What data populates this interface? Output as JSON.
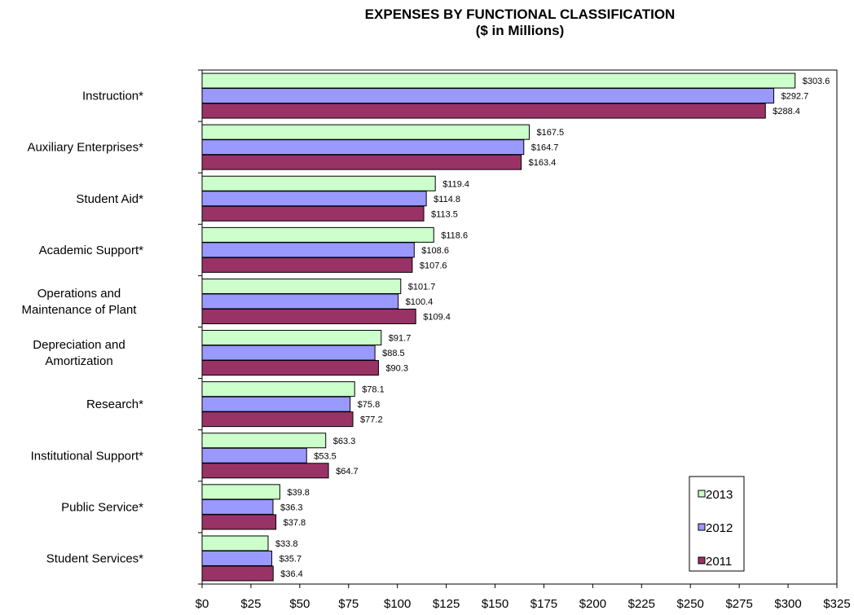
{
  "chart_data": {
    "type": "bar",
    "orientation": "horizontal",
    "title": "EXPENSES BY FUNCTIONAL  CLASSIFICATION",
    "subtitle": "($ in Millions)",
    "categories": [
      "Instruction*",
      "Auxiliary Enterprises*",
      "Student Aid*",
      "Academic Support*",
      "Operations and\nMaintenance of Plant",
      "Depreciation and\nAmortization",
      "Research*",
      "Institutional Support*",
      "Public Service*",
      "Student Services*"
    ],
    "series": [
      {
        "name": "2013",
        "color": "#ccffcc",
        "values": [
          303.6,
          167.5,
          119.4,
          118.6,
          101.7,
          91.7,
          78.1,
          63.3,
          39.8,
          33.8
        ],
        "labels": [
          "$303.6",
          "$167.5",
          "$119.4",
          "$118.6",
          "$101.7",
          "$91.7",
          "$78.1",
          "$63.3",
          "$39.8",
          "$33.8"
        ]
      },
      {
        "name": "2012",
        "color": "#9999ff",
        "values": [
          292.7,
          164.7,
          114.8,
          108.6,
          100.4,
          88.5,
          75.8,
          53.5,
          36.3,
          35.7
        ],
        "labels": [
          "$292.7",
          "$164.7",
          "$114.8",
          "$108.6",
          "$100.4",
          "$88.5",
          "$75.8",
          "$53.5",
          "$36.3",
          "$35.7"
        ]
      },
      {
        "name": "2011",
        "color": "#993366",
        "values": [
          288.4,
          163.4,
          113.5,
          107.6,
          109.4,
          90.3,
          77.2,
          64.7,
          37.8,
          36.4
        ],
        "labels": [
          "$288.4",
          "$163.4",
          "$113.5",
          "$107.6",
          "$109.4",
          "$90.3",
          "$77.2",
          "$64.7",
          "$37.8",
          "$36.4"
        ]
      }
    ],
    "xlim": [
      0,
      325
    ],
    "xticks": [
      0,
      25,
      50,
      75,
      100,
      125,
      150,
      175,
      200,
      225,
      250,
      275,
      300,
      325
    ],
    "xtick_labels": [
      "$0",
      "$25",
      "$50",
      "$75",
      "$100",
      "$125",
      "$150",
      "$175",
      "$200",
      "$225",
      "$250",
      "$275",
      "$300",
      "$325"
    ],
    "grid": false,
    "legend_position": "bottom-right",
    "legend_order": [
      "2013",
      "2012",
      "2011"
    ]
  }
}
